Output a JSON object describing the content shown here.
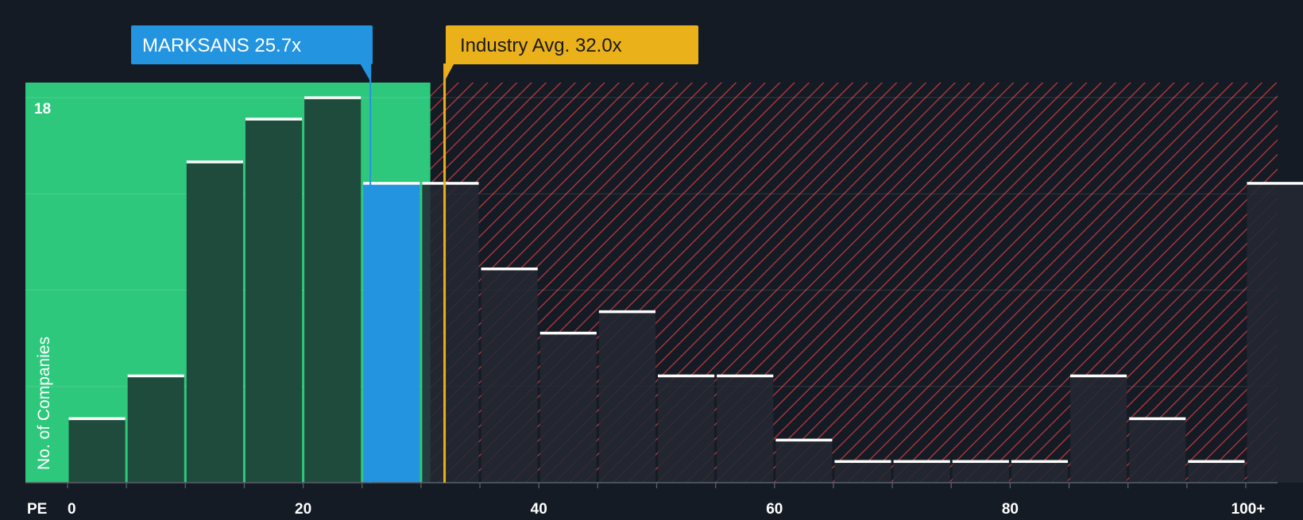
{
  "chart_data": {
    "type": "bar",
    "xlabel": "PE",
    "ylabel": "No. of Companies",
    "x_tick_labels": [
      "0",
      "20",
      "40",
      "60",
      "80",
      "100+"
    ],
    "x_tick_values": [
      0,
      20,
      40,
      60,
      80,
      100
    ],
    "y_tick_labels": [
      "18"
    ],
    "y_tick_values": [
      18
    ],
    "ylim": [
      0,
      18.7
    ],
    "grid": true,
    "bin_width": 5,
    "bins": [
      {
        "start": 0,
        "value": 3,
        "highlight": false
      },
      {
        "start": 5,
        "value": 5,
        "highlight": false
      },
      {
        "start": 10,
        "value": 15,
        "highlight": false
      },
      {
        "start": 15,
        "value": 17,
        "highlight": false
      },
      {
        "start": 20,
        "value": 18,
        "highlight": false
      },
      {
        "start": 25,
        "value": 14,
        "highlight": true
      },
      {
        "start": 30,
        "value": 14,
        "highlight": false
      },
      {
        "start": 35,
        "value": 10,
        "highlight": false
      },
      {
        "start": 40,
        "value": 7,
        "highlight": false
      },
      {
        "start": 45,
        "value": 8,
        "highlight": false
      },
      {
        "start": 50,
        "value": 5,
        "highlight": false
      },
      {
        "start": 55,
        "value": 5,
        "highlight": false
      },
      {
        "start": 60,
        "value": 2,
        "highlight": false
      },
      {
        "start": 65,
        "value": 1,
        "highlight": false
      },
      {
        "start": 70,
        "value": 1,
        "highlight": false
      },
      {
        "start": 75,
        "value": 1,
        "highlight": false
      },
      {
        "start": 80,
        "value": 1,
        "highlight": false
      },
      {
        "start": 85,
        "value": 5,
        "highlight": false
      },
      {
        "start": 90,
        "value": 3,
        "highlight": false
      },
      {
        "start": 95,
        "value": 1,
        "highlight": false
      },
      {
        "start": 100,
        "value": 14,
        "highlight": false
      }
    ],
    "fair_zone_end": 30.8,
    "company": {
      "label": "MARKSANS 25.7x",
      "value": 25.7
    },
    "industry": {
      "label": "Industry Avg. 32.0x",
      "value": 32.0
    },
    "colors": {
      "background": "#151b24",
      "fair_zone": "#2ec87d",
      "bar_in_zone": "#1f4b3c",
      "bar_highlight": "#2394e0",
      "bar_out_zone": "#232833",
      "hatch": "#c53a3f",
      "company_label": "#2394e0",
      "industry_label": "#eab11b",
      "bar_cap": "#ffffff",
      "axis_text": "#ffffff"
    }
  }
}
